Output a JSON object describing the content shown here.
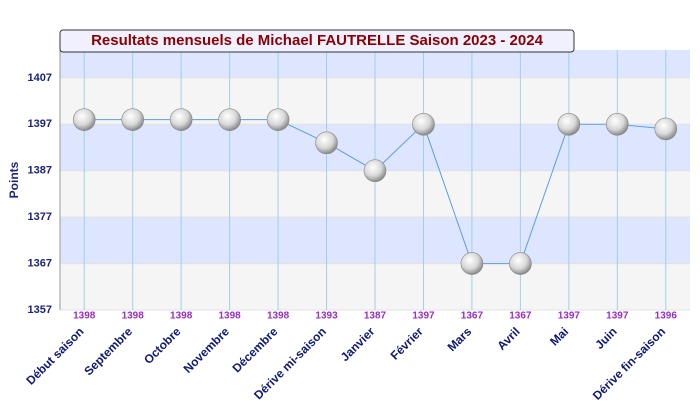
{
  "chart_data": {
    "type": "line",
    "title": "Resultats mensuels de Michael FAUTRELLE Saison 2023 - 2024",
    "y_label": "Points",
    "categories": [
      "Début saison",
      "Septembre",
      "Octobre",
      "Novembre",
      "Décembre",
      "Dérive mi-saison",
      "Janvier",
      "Février",
      "Mars",
      "Avril",
      "Mai",
      "Juin",
      "Dérive fin-saison"
    ],
    "values": [
      1398,
      1398,
      1398,
      1398,
      1398,
      1393,
      1387,
      1397,
      1367,
      1367,
      1397,
      1397,
      1396
    ],
    "color": "#5a9fe0",
    "ylim": [
      1357,
      1413
    ],
    "yticks": [
      1357,
      1367,
      1377,
      1387,
      1397,
      1407
    ],
    "grid": true
  }
}
